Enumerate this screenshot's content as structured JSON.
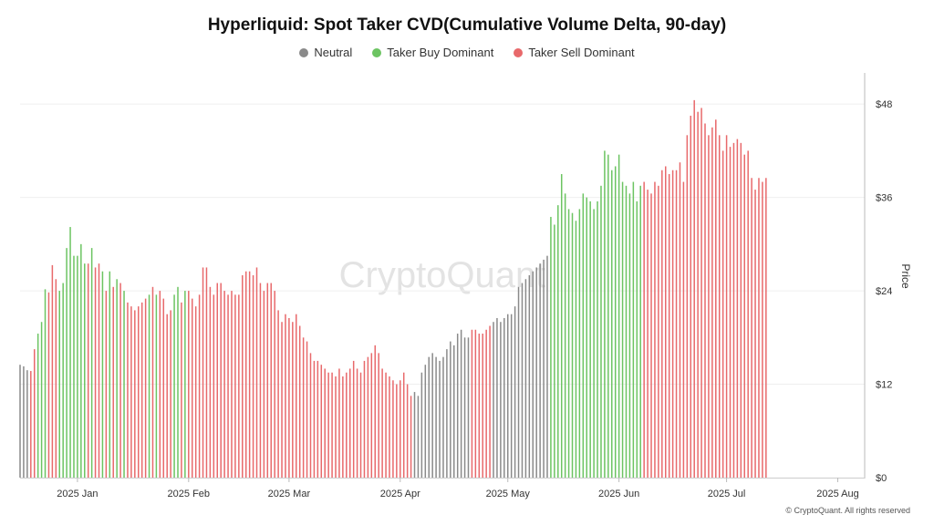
{
  "chart_data": {
    "type": "bar",
    "title": "Hyperliquid: Spot Taker CVD(Cumulative Volume Delta, 90-day)",
    "ylabel": "Price",
    "ylim": [
      0,
      52
    ],
    "yticks": [
      0,
      12,
      24,
      36,
      48
    ],
    "ytick_labels": [
      "$0",
      "$12",
      "$24",
      "$36",
      "$48"
    ],
    "x_range": [
      "2024-12-16",
      "2025-08-08"
    ],
    "xticks": [
      {
        "label": "2025 Jan",
        "date": "2025-01-01"
      },
      {
        "label": "2025 Feb",
        "date": "2025-02-01"
      },
      {
        "label": "2025 Mar",
        "date": "2025-03-01"
      },
      {
        "label": "2025 Apr",
        "date": "2025-04-01"
      },
      {
        "label": "2025 May",
        "date": "2025-05-01"
      },
      {
        "label": "2025 Jun",
        "date": "2025-06-01"
      },
      {
        "label": "2025 Jul",
        "date": "2025-07-01"
      },
      {
        "label": "2025 Aug",
        "date": "2025-08-01"
      }
    ],
    "legend": [
      {
        "key": "N",
        "label": "Neutral",
        "color": "#8a8a8a"
      },
      {
        "key": "B",
        "label": "Taker Buy Dominant",
        "color": "#6cc462"
      },
      {
        "key": "S",
        "label": "Taker Sell Dominant",
        "color": "#e8696b"
      }
    ],
    "start_date": "2024-12-16",
    "step_days": 1,
    "values": [
      14.5,
      14.3,
      13.8,
      13.7,
      16.5,
      18.5,
      20.0,
      24.2,
      23.8,
      27.3,
      25.5,
      24.0,
      25.0,
      29.5,
      32.2,
      28.5,
      28.5,
      30.0,
      27.5,
      27.5,
      29.5,
      27.0,
      27.5,
      26.5,
      24.0,
      26.5,
      24.5,
      25.5,
      25.0,
      24.0,
      22.5,
      22.0,
      21.5,
      22.0,
      22.5,
      23.0,
      23.5,
      24.5,
      23.5,
      24.0,
      23.0,
      21.0,
      21.5,
      23.5,
      24.5,
      22.5,
      24.0,
      24.0,
      23.0,
      22.0,
      23.5,
      27.0,
      27.0,
      24.5,
      23.5,
      25.0,
      25.0,
      24.0,
      23.5,
      24.0,
      23.5,
      23.5,
      26.0,
      26.5,
      26.5,
      26.0,
      27.0,
      25.0,
      24.0,
      25.0,
      25.0,
      24.0,
      21.5,
      20.0,
      21.0,
      20.5,
      20.0,
      21.0,
      19.5,
      18.0,
      17.5,
      16.0,
      15.0,
      15.0,
      14.5,
      14.0,
      13.5,
      13.5,
      13.0,
      14.0,
      13.0,
      13.5,
      14.0,
      15.0,
      14.0,
      13.5,
      15.0,
      15.5,
      16.0,
      17.0,
      16.0,
      14.0,
      13.5,
      13.0,
      12.5,
      12.0,
      12.5,
      13.5,
      12.0,
      10.5,
      11.0,
      10.5,
      13.5,
      14.5,
      15.5,
      16.0,
      15.5,
      15.0,
      15.5,
      16.5,
      17.5,
      17.0,
      18.5,
      19.0,
      18.0,
      18.0,
      19.0,
      19.0,
      18.5,
      18.5,
      19.0,
      19.5,
      20.0,
      20.5,
      20.0,
      20.5,
      21.0,
      21.0,
      22.0,
      24.5,
      25.0,
      25.5,
      26.0,
      26.5,
      27.0,
      27.5,
      28.0,
      28.5,
      33.5,
      32.5,
      35.0,
      39.0,
      36.5,
      34.5,
      34.0,
      33.0,
      34.5,
      36.5,
      36.0,
      35.5,
      34.5,
      35.5,
      37.5,
      42.0,
      41.5,
      39.5,
      40.0,
      41.5,
      38.0,
      37.5,
      36.5,
      38.0,
      35.5,
      37.5,
      38.0,
      37.0,
      36.5,
      38.0,
      37.5,
      39.5,
      40.0,
      39.0,
      39.5,
      39.5,
      40.5,
      38.0,
      44.0,
      46.5,
      48.5,
      47.0,
      47.5,
      45.5,
      44.0,
      45.0,
      46.0,
      44.0,
      42.0,
      44.0,
      42.5,
      43.0,
      43.5,
      43.0,
      41.5,
      42.0,
      38.5,
      37.0,
      38.5,
      38.0,
      38.5
    ],
    "colors": "NNNSSBBBSSSBBBBBBBBSBSSBSBSBSBSSSSSSBSBSSSSBBSBSSSSSSSSSSSSSSSSSSSSSSSSSSSSSSSSSSSSSSSSSSSSSSSSSSSSSSSSSSSSSSSNNNNNNNNNNNNNNNNSSSSSSNNNNNNNNNNNNNNNNBBBBBBBBBBBBBBBBBBBBBBBBBBSSSSSSSSSSSSSSSSSSSSSSSSSSSSSSSSSSSSSSSSS"
  },
  "watermark": "CryptoQuant",
  "footer": "© CryptoQuant. All rights reserved"
}
